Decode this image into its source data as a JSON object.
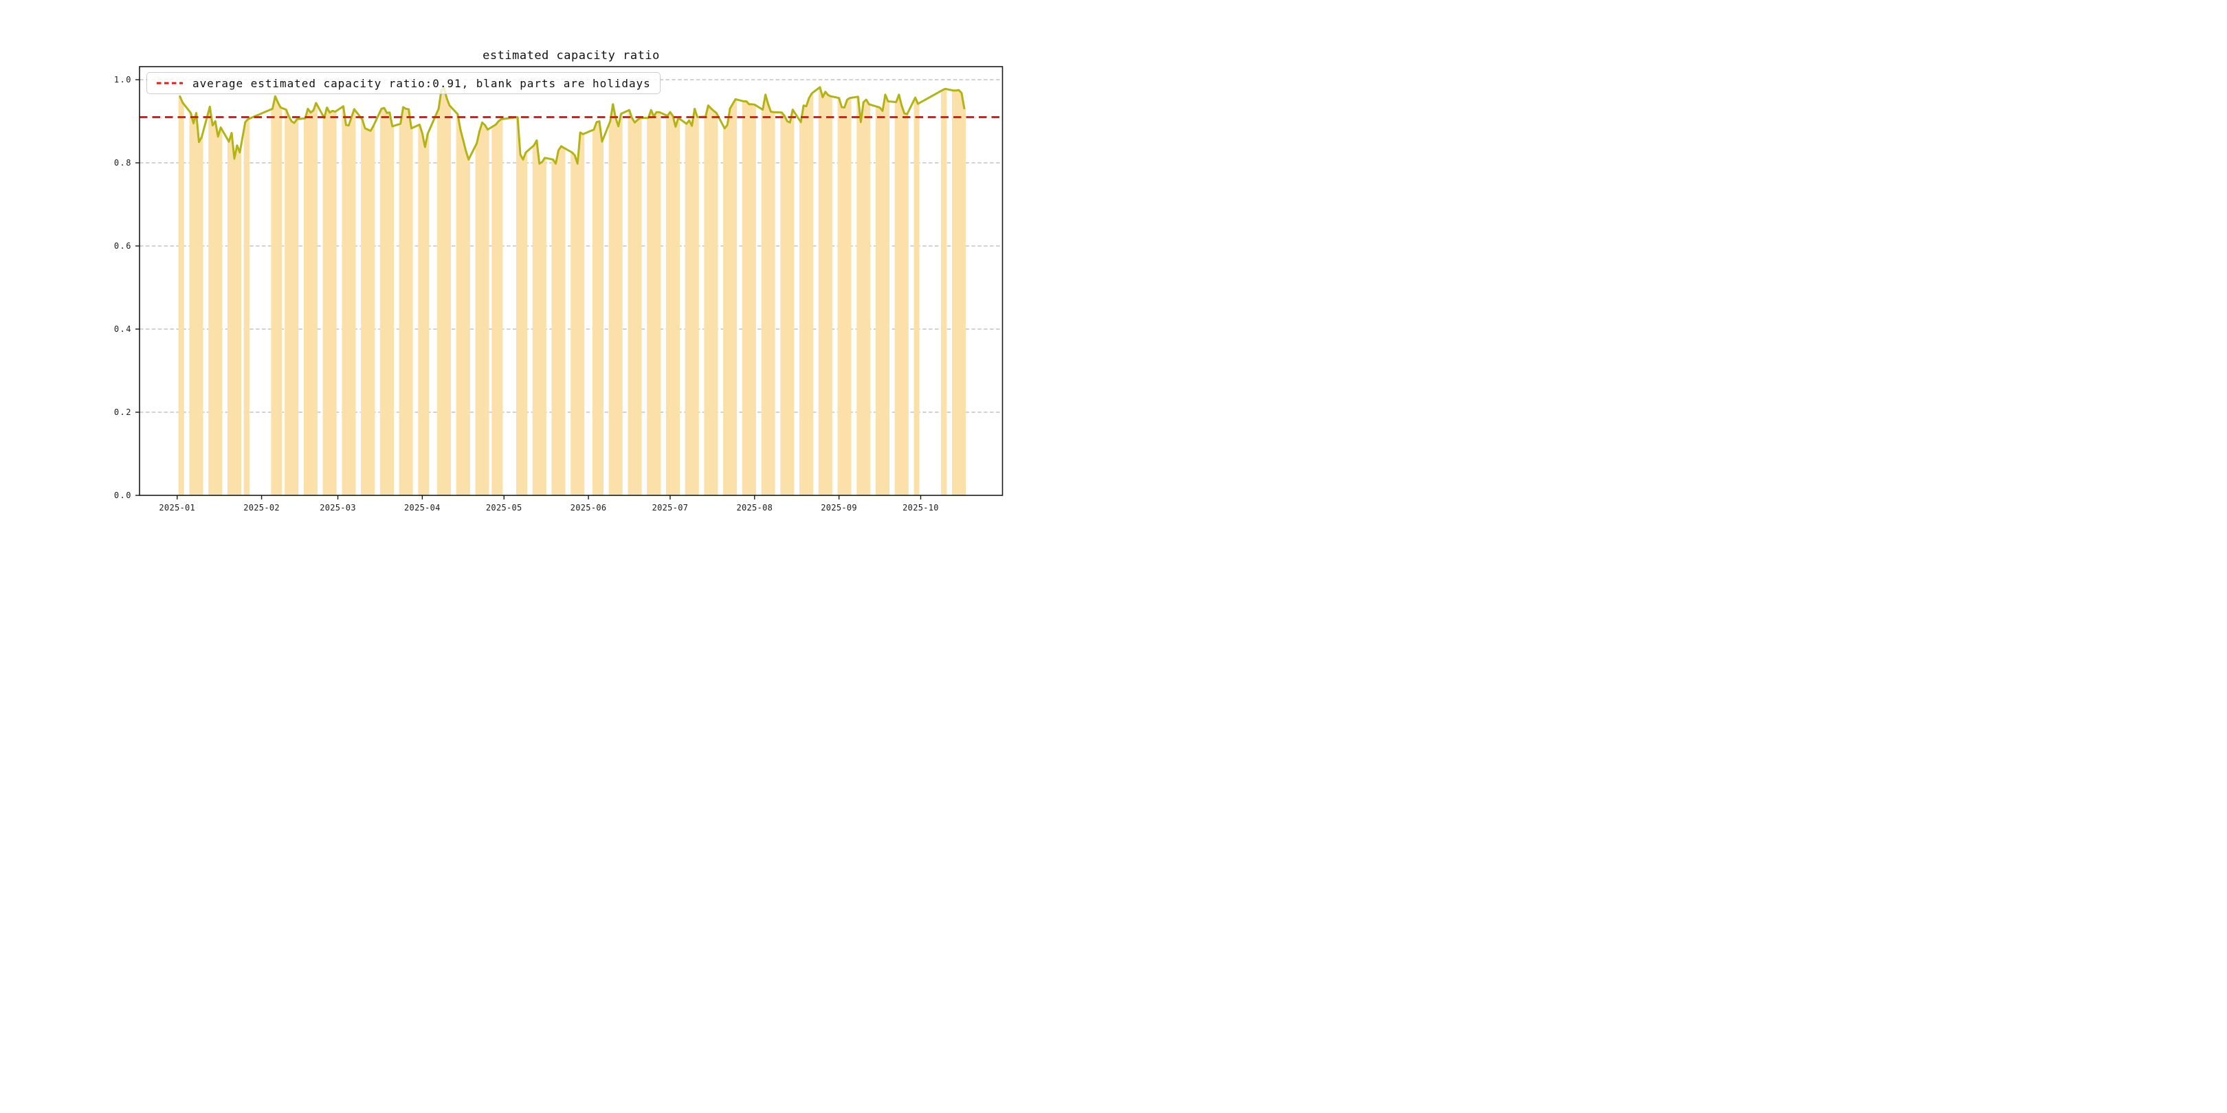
{
  "figure": {
    "title": "estimated capacity ratio",
    "background_color": "#ffffff"
  },
  "legend": {
    "label": "average estimated capacity ratio:0.91, blank parts are holidays",
    "position": "upper left",
    "sample": "red-dashed-line"
  },
  "chart_data": {
    "type": "bar+line",
    "title": "estimated capacity ratio",
    "xlabel": "",
    "ylabel": "",
    "grid": "dashed horizontal",
    "ylim": [
      0.0,
      1.031
    ],
    "y_ticks": [
      0.0,
      0.2,
      0.4,
      0.6,
      0.8,
      1.0
    ],
    "y_tick_labels": [
      "0.0",
      "0.2",
      "0.4",
      "0.6",
      "0.8",
      "1.0"
    ],
    "x_tick_dates": [
      "2025-01-01",
      "2025-02-01",
      "2025-03-01",
      "2025-04-01",
      "2025-05-01",
      "2025-06-01",
      "2025-07-01",
      "2025-08-01",
      "2025-09-01",
      "2025-10-01"
    ],
    "x_tick_labels": [
      "2025-01",
      "2025-02",
      "2025-03",
      "2025-04",
      "2025-05",
      "2025-06",
      "2025-07",
      "2025-08",
      "2025-09",
      "2025-10"
    ],
    "average_line": {
      "value": 0.91,
      "color": "#f01414",
      "style": "dashed"
    },
    "colors": {
      "bar_fill": "#fbe1a9",
      "line": "#b1b414",
      "grid": "#a6a6a6",
      "spine": "#1a1a1a",
      "tick_text": "#1a1a1a"
    },
    "note_blank_parts": "holidays (no bars / no line vertices on weekends and holiday gaps)",
    "series": [
      {
        "name": "estimated capacity ratio",
        "dates": [
          "2025-01-02",
          "2025-01-03",
          "2025-01-06",
          "2025-01-07",
          "2025-01-08",
          "2025-01-09",
          "2025-01-10",
          "2025-01-13",
          "2025-01-14",
          "2025-01-15",
          "2025-01-16",
          "2025-01-17",
          "2025-01-20",
          "2025-01-21",
          "2025-01-22",
          "2025-01-23",
          "2025-01-24",
          "2025-01-26",
          "2025-01-27",
          "2025-02-05",
          "2025-02-06",
          "2025-02-07",
          "2025-02-08",
          "2025-02-10",
          "2025-02-11",
          "2025-02-12",
          "2025-02-13",
          "2025-02-14",
          "2025-02-17",
          "2025-02-18",
          "2025-02-19",
          "2025-02-20",
          "2025-02-21",
          "2025-02-24",
          "2025-02-25",
          "2025-02-26",
          "2025-02-27",
          "2025-02-28",
          "2025-03-03",
          "2025-03-04",
          "2025-03-05",
          "2025-03-06",
          "2025-03-07",
          "2025-03-10",
          "2025-03-11",
          "2025-03-12",
          "2025-03-13",
          "2025-03-14",
          "2025-03-17",
          "2025-03-18",
          "2025-03-19",
          "2025-03-20",
          "2025-03-21",
          "2025-03-24",
          "2025-03-25",
          "2025-03-26",
          "2025-03-27",
          "2025-03-28",
          "2025-03-31",
          "2025-04-01",
          "2025-04-02",
          "2025-04-03",
          "2025-04-07",
          "2025-04-08",
          "2025-04-09",
          "2025-04-10",
          "2025-04-11",
          "2025-04-14",
          "2025-04-15",
          "2025-04-16",
          "2025-04-17",
          "2025-04-18",
          "2025-04-21",
          "2025-04-22",
          "2025-04-23",
          "2025-04-24",
          "2025-04-25",
          "2025-04-27",
          "2025-04-28",
          "2025-04-29",
          "2025-04-30",
          "2025-05-06",
          "2025-05-07",
          "2025-05-08",
          "2025-05-09",
          "2025-05-12",
          "2025-05-13",
          "2025-05-14",
          "2025-05-15",
          "2025-05-16",
          "2025-05-19",
          "2025-05-20",
          "2025-05-21",
          "2025-05-22",
          "2025-05-23",
          "2025-05-26",
          "2025-05-27",
          "2025-05-28",
          "2025-05-29",
          "2025-05-30",
          "2025-06-03",
          "2025-06-04",
          "2025-06-05",
          "2025-06-06",
          "2025-06-09",
          "2025-06-10",
          "2025-06-11",
          "2025-06-12",
          "2025-06-13",
          "2025-06-16",
          "2025-06-17",
          "2025-06-18",
          "2025-06-19",
          "2025-06-20",
          "2025-06-23",
          "2025-06-24",
          "2025-06-25",
          "2025-06-26",
          "2025-06-27",
          "2025-06-30",
          "2025-07-01",
          "2025-07-02",
          "2025-07-03",
          "2025-07-04",
          "2025-07-07",
          "2025-07-08",
          "2025-07-09",
          "2025-07-10",
          "2025-07-11",
          "2025-07-14",
          "2025-07-15",
          "2025-07-16",
          "2025-07-17",
          "2025-07-18",
          "2025-07-21",
          "2025-07-22",
          "2025-07-23",
          "2025-07-24",
          "2025-07-25",
          "2025-07-28",
          "2025-07-29",
          "2025-07-30",
          "2025-07-31",
          "2025-08-01",
          "2025-08-04",
          "2025-08-05",
          "2025-08-06",
          "2025-08-07",
          "2025-08-08",
          "2025-08-11",
          "2025-08-12",
          "2025-08-13",
          "2025-08-14",
          "2025-08-15",
          "2025-08-18",
          "2025-08-19",
          "2025-08-20",
          "2025-08-21",
          "2025-08-22",
          "2025-08-25",
          "2025-08-26",
          "2025-08-27",
          "2025-08-28",
          "2025-08-29",
          "2025-09-01",
          "2025-09-02",
          "2025-09-03",
          "2025-09-04",
          "2025-09-05",
          "2025-09-08",
          "2025-09-09",
          "2025-09-10",
          "2025-09-11",
          "2025-09-12",
          "2025-09-15",
          "2025-09-16",
          "2025-09-17",
          "2025-09-18",
          "2025-09-19",
          "2025-09-22",
          "2025-09-23",
          "2025-09-24",
          "2025-09-25",
          "2025-09-26",
          "2025-09-29",
          "2025-09-30",
          "2025-10-09",
          "2025-10-10",
          "2025-10-13",
          "2025-10-14",
          "2025-10-15",
          "2025-10-16",
          "2025-10-17"
        ],
        "values": [
          0.96,
          0.945,
          0.92,
          0.895,
          0.92,
          0.85,
          0.862,
          0.935,
          0.89,
          0.9,
          0.863,
          0.885,
          0.851,
          0.872,
          0.81,
          0.842,
          0.825,
          0.898,
          0.905,
          0.93,
          0.96,
          0.945,
          0.933,
          0.928,
          0.912,
          0.9,
          0.896,
          0.905,
          0.907,
          0.93,
          0.921,
          0.926,
          0.944,
          0.908,
          0.933,
          0.921,
          0.925,
          0.923,
          0.936,
          0.891,
          0.89,
          0.91,
          0.929,
          0.904,
          0.883,
          0.88,
          0.877,
          0.888,
          0.93,
          0.932,
          0.92,
          0.921,
          0.888,
          0.894,
          0.934,
          0.93,
          0.929,
          0.883,
          0.892,
          0.871,
          0.838,
          0.87,
          0.93,
          0.975,
          0.98,
          0.955,
          0.938,
          0.917,
          0.88,
          0.855,
          0.829,
          0.808,
          0.847,
          0.876,
          0.897,
          0.891,
          0.88,
          0.888,
          0.892,
          0.9,
          0.905,
          0.91,
          0.82,
          0.808,
          0.825,
          0.842,
          0.854,
          0.798,
          0.802,
          0.812,
          0.808,
          0.798,
          0.83,
          0.84,
          0.836,
          0.825,
          0.818,
          0.798,
          0.873,
          0.869,
          0.88,
          0.898,
          0.9,
          0.851,
          0.9,
          0.941,
          0.908,
          0.888,
          0.918,
          0.927,
          0.908,
          0.897,
          0.903,
          0.908,
          0.908,
          0.927,
          0.912,
          0.922,
          0.922,
          0.913,
          0.922,
          0.913,
          0.887,
          0.908,
          0.894,
          0.902,
          0.889,
          0.93,
          0.91,
          0.911,
          0.938,
          0.931,
          0.925,
          0.92,
          0.883,
          0.891,
          0.931,
          0.942,
          0.953,
          0.948,
          0.948,
          0.941,
          0.941,
          0.94,
          0.928,
          0.964,
          0.941,
          0.923,
          0.922,
          0.921,
          0.913,
          0.9,
          0.897,
          0.928,
          0.898,
          0.938,
          0.936,
          0.956,
          0.967,
          0.982,
          0.958,
          0.971,
          0.963,
          0.96,
          0.956,
          0.934,
          0.933,
          0.952,
          0.956,
          0.959,
          0.898,
          0.946,
          0.952,
          0.941,
          0.935,
          0.933,
          0.925,
          0.964,
          0.948,
          0.946,
          0.964,
          0.938,
          0.919,
          0.917,
          0.957,
          0.942,
          0.975,
          0.978,
          0.974,
          0.974,
          0.975,
          0.968,
          0.931
        ]
      }
    ]
  }
}
